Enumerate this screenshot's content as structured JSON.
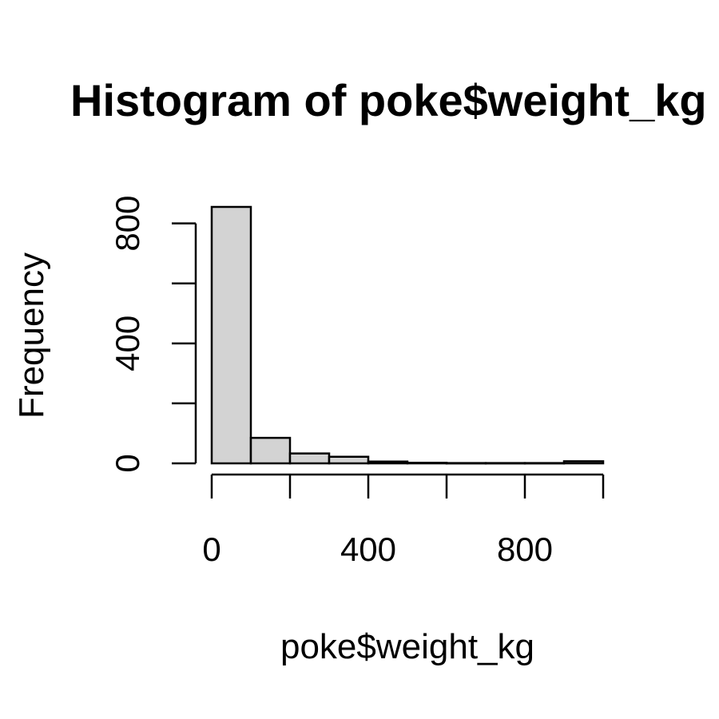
{
  "chart_data": {
    "type": "bar",
    "title": "Histogram of poke$weight_kg",
    "xlabel": "poke$weight_kg",
    "ylabel": "Frequency",
    "bins": [
      {
        "start": 0,
        "end": 100,
        "count": 855
      },
      {
        "start": 100,
        "end": 200,
        "count": 85
      },
      {
        "start": 200,
        "end": 300,
        "count": 33
      },
      {
        "start": 300,
        "end": 400,
        "count": 22
      },
      {
        "start": 400,
        "end": 500,
        "count": 6
      },
      {
        "start": 500,
        "end": 600,
        "count": 2
      },
      {
        "start": 600,
        "end": 700,
        "count": 1
      },
      {
        "start": 700,
        "end": 800,
        "count": 1
      },
      {
        "start": 800,
        "end": 900,
        "count": 1
      },
      {
        "start": 900,
        "end": 1000,
        "count": 7
      }
    ],
    "x_ticks": [
      0,
      400,
      800
    ],
    "x_minor_ticks": [
      0,
      200,
      400,
      600,
      800,
      1000
    ],
    "x_tick_labels": [
      "0",
      "400",
      "800"
    ],
    "y_ticks": [
      0,
      200,
      400,
      600,
      800
    ],
    "y_tick_labels": [
      "0",
      "",
      "400",
      "",
      "800"
    ],
    "xlim": [
      0,
      1000
    ],
    "ylim": [
      0,
      855
    ],
    "bar_fill": "#d3d3d3",
    "bar_stroke": "#000000",
    "grid": false,
    "legend": "none"
  }
}
